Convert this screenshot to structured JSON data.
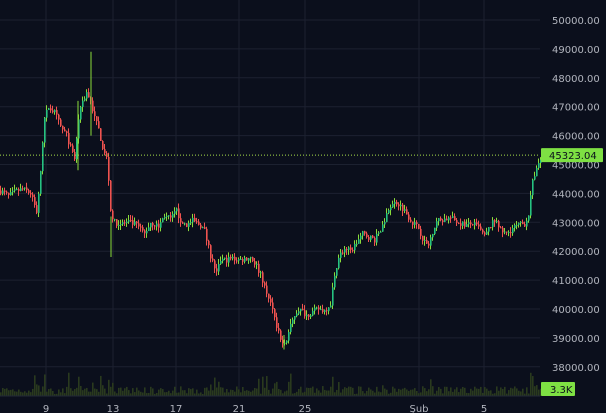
{
  "colors": {
    "background": "#0b0f1c",
    "grid": "#1c2130",
    "up": "#26c281",
    "up_wick": "#8bdc3a",
    "down": "#ef5350",
    "price_line": "#a8e04a",
    "badge": "#7ee043",
    "volume": "#2a3a1e",
    "axis_text": "#b2b5be"
  },
  "price_axis": {
    "tick_labels": [
      "50000.00",
      "49000.00",
      "48000.00",
      "47000.00",
      "46000.00",
      "45000.00",
      "44000.00",
      "43000.00",
      "42000.00",
      "41000.00",
      "40000.00",
      "39000.00",
      "38000.00"
    ],
    "current_price_label": "45323.04",
    "volume_label": "3.3K"
  },
  "time_axis": {
    "tick_labels": [
      "9",
      "13",
      "17",
      "21",
      "25",
      "Şub",
      "5"
    ]
  },
  "chart_data": {
    "type": "candlestick",
    "ylim": [
      37700,
      50300
    ],
    "yticks": [
      50000,
      49000,
      48000,
      47000,
      46000,
      45000,
      44000,
      43000,
      42000,
      41000,
      40000,
      39000,
      38000
    ],
    "current_price": 45323.04,
    "volume_last": "3.3K",
    "grid": true,
    "xtick_labels": [
      "9",
      "13",
      "17",
      "21",
      "25",
      "Şub",
      "5"
    ],
    "path_points": [
      [
        0,
        44100
      ],
      [
        8,
        43900
      ],
      [
        14,
        44050
      ],
      [
        22,
        44150
      ],
      [
        30,
        44000
      ],
      [
        36,
        43350
      ],
      [
        40,
        44700
      ],
      [
        44,
        46600
      ],
      [
        48,
        47000
      ],
      [
        54,
        46800
      ],
      [
        60,
        46300
      ],
      [
        66,
        46000
      ],
      [
        70,
        45600
      ],
      [
        74,
        45100
      ],
      [
        78,
        46600
      ],
      [
        82,
        47200
      ],
      [
        86,
        47500
      ],
      [
        90,
        47200
      ],
      [
        94,
        46600
      ],
      [
        98,
        46200
      ],
      [
        102,
        45600
      ],
      [
        106,
        45200
      ],
      [
        108,
        44500
      ],
      [
        110,
        43400
      ],
      [
        114,
        43000
      ],
      [
        120,
        42950
      ],
      [
        128,
        43000
      ],
      [
        136,
        42900
      ],
      [
        144,
        42600
      ],
      [
        150,
        43000
      ],
      [
        158,
        42850
      ],
      [
        164,
        43250
      ],
      [
        170,
        43100
      ],
      [
        176,
        43400
      ],
      [
        180,
        43050
      ],
      [
        186,
        42900
      ],
      [
        192,
        43050
      ],
      [
        200,
        42900
      ],
      [
        204,
        42700
      ],
      [
        208,
        42100
      ],
      [
        212,
        41600
      ],
      [
        216,
        41300
      ],
      [
        220,
        41700
      ],
      [
        224,
        41700
      ],
      [
        232,
        41750
      ],
      [
        240,
        41700
      ],
      [
        250,
        41800
      ],
      [
        256,
        41500
      ],
      [
        262,
        41000
      ],
      [
        266,
        40600
      ],
      [
        270,
        40200
      ],
      [
        274,
        39700
      ],
      [
        278,
        39200
      ],
      [
        282,
        38800
      ],
      [
        286,
        38950
      ],
      [
        290,
        39400
      ],
      [
        294,
        39800
      ],
      [
        298,
        40000
      ],
      [
        302,
        39900
      ],
      [
        306,
        39800
      ],
      [
        312,
        39900
      ],
      [
        318,
        40000
      ],
      [
        324,
        39950
      ],
      [
        330,
        40200
      ],
      [
        334,
        41200
      ],
      [
        338,
        41800
      ],
      [
        344,
        42100
      ],
      [
        350,
        42000
      ],
      [
        356,
        42300
      ],
      [
        362,
        42600
      ],
      [
        368,
        42500
      ],
      [
        374,
        42400
      ],
      [
        380,
        42700
      ],
      [
        386,
        43300
      ],
      [
        390,
        43600
      ],
      [
        396,
        43700
      ],
      [
        402,
        43500
      ],
      [
        408,
        43200
      ],
      [
        412,
        43000
      ],
      [
        418,
        42800
      ],
      [
        424,
        42300
      ],
      [
        428,
        42200
      ],
      [
        432,
        42700
      ],
      [
        436,
        43050
      ],
      [
        442,
        43100
      ],
      [
        450,
        43150
      ],
      [
        458,
        43000
      ],
      [
        466,
        42900
      ],
      [
        472,
        42950
      ],
      [
        478,
        42800
      ],
      [
        484,
        42500
      ],
      [
        490,
        42900
      ],
      [
        496,
        43100
      ],
      [
        500,
        42700
      ],
      [
        506,
        42600
      ],
      [
        512,
        42800
      ],
      [
        518,
        42900
      ],
      [
        524,
        42950
      ],
      [
        528,
        43300
      ],
      [
        532,
        44400
      ],
      [
        536,
        44900
      ],
      [
        540,
        45100
      ],
      [
        544,
        45323
      ]
    ],
    "spikes": [
      {
        "x": 78,
        "high": 47200,
        "low": 44800
      },
      {
        "x": 91,
        "high": 48900,
        "low": 46000
      },
      {
        "x": 111,
        "high": 43200,
        "low": 41800
      },
      {
        "x": 284,
        "high": 39100,
        "low": 38600
      }
    ]
  }
}
